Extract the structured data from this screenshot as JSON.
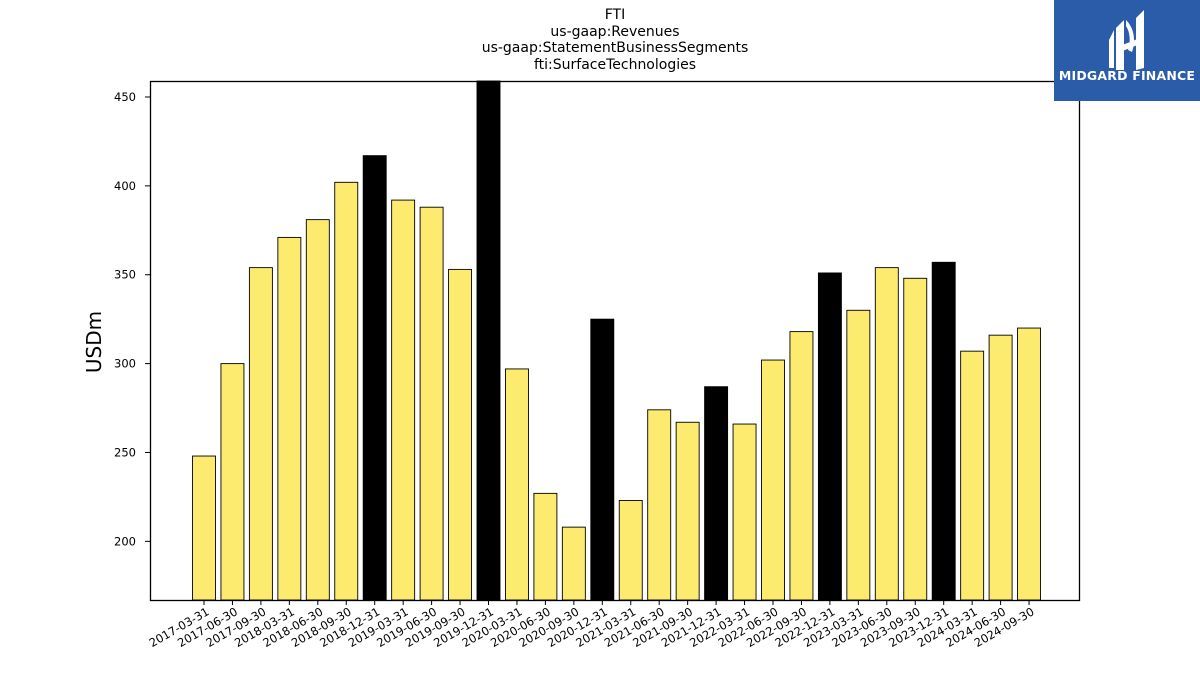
{
  "chart_data": {
    "type": "bar",
    "title_lines": [
      "FTI",
      "us-gaap:Revenues",
      "us-gaap:StatementBusinessSegments",
      "fti:SurfaceTechnologies"
    ],
    "ylabel": "USDm",
    "ylim": [
      167,
      459
    ],
    "yticks": [
      200,
      250,
      300,
      350,
      400,
      450
    ],
    "categories": [
      "2017-03-31",
      "2017-06-30",
      "2017-09-30",
      "2018-03-31",
      "2018-06-30",
      "2018-09-30",
      "2018-12-31",
      "2019-03-31",
      "2019-06-30",
      "2019-09-30",
      "2019-12-31",
      "2020-03-31",
      "2020-06-30",
      "2020-09-30",
      "2020-12-31",
      "2021-03-31",
      "2021-06-30",
      "2021-09-30",
      "2021-12-31",
      "2022-03-31",
      "2022-06-30",
      "2022-09-30",
      "2022-12-31",
      "2023-03-31",
      "2023-06-30",
      "2023-09-30",
      "2023-12-31",
      "2024-03-31",
      "2024-06-30",
      "2024-09-30"
    ],
    "values": [
      248,
      300,
      354,
      371,
      381,
      402,
      417,
      392,
      388,
      353,
      459,
      297,
      227,
      208,
      325,
      223,
      274,
      267,
      287,
      266,
      302,
      318,
      351,
      330,
      354,
      348,
      357,
      307,
      316,
      320
    ],
    "highlighted": [
      "2018-12-31",
      "2019-12-31",
      "2020-12-31",
      "2021-12-31",
      "2022-12-31",
      "2023-12-31"
    ],
    "colors": {
      "normal": "#fdeb70",
      "highlight": "#000000",
      "edge": "#000000"
    }
  },
  "logo": {
    "text": "MIDGARD FINANCE",
    "background": "#2a5caa"
  }
}
